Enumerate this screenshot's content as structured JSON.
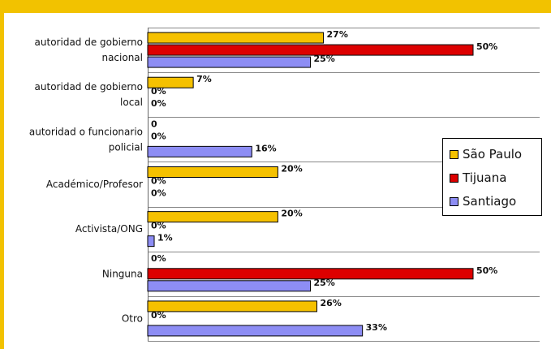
{
  "header": {
    "partial_title": ""
  },
  "legend_title": "",
  "chart_data": {
    "type": "bar",
    "orientation": "horizontal",
    "title": "",
    "xlabel": "",
    "ylabel": "",
    "xlim": [
      0,
      50
    ],
    "grid": "horizontal separators between categories",
    "legend_position": "right",
    "categories": [
      "autoridad de gobierno nacional",
      "autoridad de gobierno local",
      "autoridad o funcionario policial",
      "Académico/Profesor",
      "Activista/ONG",
      "Ninguna",
      "Otro"
    ],
    "category_lines": [
      [
        "autoridad de gobierno",
        "nacional"
      ],
      [
        "autoridad de gobierno",
        "local"
      ],
      [
        "autoridad o funcionario",
        "policial"
      ],
      [
        "Académico/Profesor"
      ],
      [
        "Activista/ONG"
      ],
      [
        "Ninguna"
      ],
      [
        "Otro"
      ]
    ],
    "series": [
      {
        "name": "São Paulo",
        "color": "#f5c100",
        "values": [
          27,
          7,
          0,
          20,
          20,
          0,
          26
        ],
        "labels": [
          "27%",
          "7%",
          "0",
          "20%",
          "20%",
          "0%",
          "26%"
        ]
      },
      {
        "name": "Tijuana",
        "color": "#dd0000",
        "values": [
          50,
          0,
          0,
          0,
          0,
          50,
          0
        ],
        "labels": [
          "50%",
          "0%",
          "0%",
          "0%",
          "0%",
          "50%",
          "0%"
        ]
      },
      {
        "name": "Santiago",
        "color": "#8d8df4",
        "values": [
          25,
          0,
          16,
          0,
          1,
          25,
          33
        ],
        "labels": [
          "25%",
          "0%",
          "16%",
          "0%",
          "1%",
          "25%",
          "33%"
        ]
      }
    ]
  }
}
